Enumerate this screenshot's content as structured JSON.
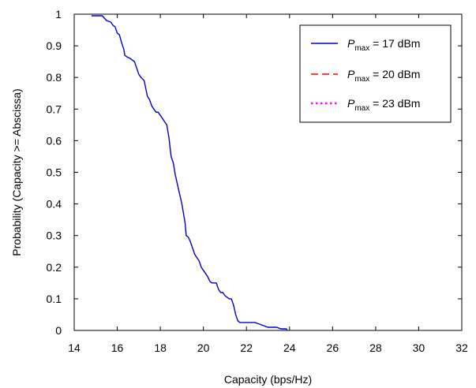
{
  "chart_data": {
    "type": "line",
    "title": "",
    "xlabel": "Capacity (bps/Hz)",
    "ylabel": "Probability (Capacity >= Abscissa)",
    "xlim": [
      14,
      32
    ],
    "ylim": [
      0,
      1
    ],
    "xticks": [
      14,
      16,
      18,
      20,
      22,
      24,
      26,
      28,
      30,
      32
    ],
    "yticks": [
      0,
      0.1,
      0.2,
      0.3,
      0.4,
      0.5,
      0.6,
      0.7,
      0.8,
      0.9,
      1
    ],
    "xtick_labels": [
      "14",
      "16",
      "18",
      "20",
      "22",
      "24",
      "26",
      "28",
      "30",
      "32"
    ],
    "ytick_labels": [
      "0",
      "0.1",
      "0.2",
      "0.3",
      "0.4",
      "0.5",
      "0.6",
      "0.7",
      "0.8",
      "0.9",
      "1"
    ],
    "grid": false,
    "legend_position": "top-right",
    "series": [
      {
        "legend_italic": "P",
        "legend_sub": "max",
        "legend_suffix": " = 17 dBm",
        "color": "#0000cc",
        "dash": "solid",
        "x": [
          14.8,
          15.3,
          15.5,
          15.7,
          15.8,
          15.9,
          16.0,
          16.1,
          16.2,
          16.3,
          16.35,
          16.45,
          16.6,
          16.8,
          16.9,
          17.0,
          17.1,
          17.25,
          17.4,
          17.5,
          17.6,
          17.7,
          17.8,
          17.9,
          18.0,
          18.1,
          18.2,
          18.3,
          18.4,
          18.45,
          18.5,
          18.6,
          18.7,
          18.8,
          18.9,
          19.0,
          19.1,
          19.15,
          19.2,
          19.3,
          19.4,
          19.5,
          19.6,
          19.7,
          19.8,
          19.9,
          20.0,
          20.1,
          20.2,
          20.3,
          20.4,
          20.5,
          20.6,
          20.7,
          20.8,
          20.9,
          21.0,
          21.1,
          21.2,
          21.3,
          21.4,
          21.5,
          21.6,
          21.7,
          21.8,
          21.9,
          22.0,
          22.05,
          22.1,
          22.2,
          22.4,
          22.6,
          22.8,
          23.0,
          23.2,
          23.3,
          23.4,
          23.6,
          23.8,
          23.85,
          23.9
        ],
        "y": [
          0.995,
          0.995,
          0.98,
          0.975,
          0.965,
          0.96,
          0.94,
          0.935,
          0.91,
          0.89,
          0.87,
          0.865,
          0.86,
          0.85,
          0.83,
          0.81,
          0.8,
          0.79,
          0.74,
          0.73,
          0.71,
          0.7,
          0.69,
          0.69,
          0.68,
          0.67,
          0.66,
          0.65,
          0.61,
          0.58,
          0.55,
          0.53,
          0.49,
          0.46,
          0.43,
          0.4,
          0.36,
          0.34,
          0.3,
          0.295,
          0.28,
          0.26,
          0.24,
          0.23,
          0.22,
          0.2,
          0.19,
          0.18,
          0.17,
          0.155,
          0.15,
          0.15,
          0.15,
          0.13,
          0.12,
          0.12,
          0.11,
          0.105,
          0.1,
          0.1,
          0.08,
          0.05,
          0.03,
          0.025,
          0.025,
          0.025,
          0.025,
          0.025,
          0.025,
          0.025,
          0.025,
          0.02,
          0.015,
          0.01,
          0.01,
          0.01,
          0.01,
          0.005,
          0.005,
          0.005,
          0.0
        ]
      },
      {
        "legend_italic": "P",
        "legend_sub": "max",
        "legend_suffix": " = 20 dBm",
        "color": "#ff0000",
        "dash": "dashed",
        "x": [],
        "y": []
      },
      {
        "legend_italic": "P",
        "legend_sub": "max",
        "legend_suffix": " = 23 dBm",
        "color": "#ff00ff",
        "dash": "dotted",
        "x": [],
        "y": []
      }
    ]
  }
}
